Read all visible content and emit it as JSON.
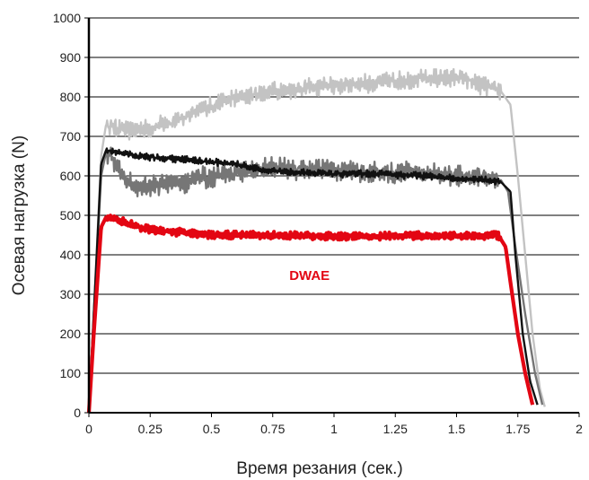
{
  "chart_data": {
    "type": "line",
    "xlabel": "Время резания (сек.)",
    "ylabel": "Осевая нагрузка (N)",
    "xlim": [
      0,
      2
    ],
    "ylim": [
      0,
      1000
    ],
    "x_ticks": [
      "0",
      "0.25",
      "0.5",
      "0.75",
      "1",
      "1.25",
      "1.5",
      "1.75",
      "2"
    ],
    "y_ticks": [
      "0",
      "100",
      "200",
      "300",
      "400",
      "500",
      "600",
      "700",
      "800",
      "900",
      "1000"
    ],
    "grid": "horizontal",
    "annotations": [
      {
        "text": "DWAE",
        "x": 0.9,
        "y": 350,
        "color": "#e30613"
      }
    ],
    "series": [
      {
        "color": "#c3c3c3",
        "noise": 25,
        "points": [
          [
            0,
            0
          ],
          [
            0.02,
            250
          ],
          [
            0.05,
            650
          ],
          [
            0.07,
            730
          ],
          [
            0.15,
            715
          ],
          [
            0.25,
            720
          ],
          [
            0.35,
            740
          ],
          [
            0.45,
            765
          ],
          [
            0.55,
            790
          ],
          [
            0.65,
            805
          ],
          [
            0.75,
            815
          ],
          [
            0.85,
            820
          ],
          [
            1.0,
            830
          ],
          [
            1.15,
            835
          ],
          [
            1.25,
            840
          ],
          [
            1.35,
            845
          ],
          [
            1.5,
            850
          ],
          [
            1.6,
            830
          ],
          [
            1.68,
            815
          ],
          [
            1.72,
            780
          ],
          [
            1.75,
            600
          ],
          [
            1.78,
            400
          ],
          [
            1.81,
            200
          ],
          [
            1.84,
            60
          ],
          [
            1.86,
            15
          ]
        ]
      },
      {
        "color": "#767676",
        "noise": 30,
        "points": [
          [
            0,
            0
          ],
          [
            0.02,
            250
          ],
          [
            0.05,
            600
          ],
          [
            0.07,
            660
          ],
          [
            0.1,
            640
          ],
          [
            0.15,
            590
          ],
          [
            0.2,
            575
          ],
          [
            0.3,
            575
          ],
          [
            0.4,
            585
          ],
          [
            0.5,
            600
          ],
          [
            0.6,
            610
          ],
          [
            0.7,
            620
          ],
          [
            0.8,
            620
          ],
          [
            1.0,
            615
          ],
          [
            1.15,
            610
          ],
          [
            1.3,
            610
          ],
          [
            1.4,
            605
          ],
          [
            1.5,
            600
          ],
          [
            1.6,
            600
          ],
          [
            1.68,
            590
          ],
          [
            1.71,
            560
          ],
          [
            1.74,
            420
          ],
          [
            1.78,
            250
          ],
          [
            1.82,
            100
          ],
          [
            1.85,
            20
          ]
        ]
      },
      {
        "color": "#111111",
        "noise": 10,
        "points": [
          [
            0,
            0
          ],
          [
            0.02,
            250
          ],
          [
            0.05,
            630
          ],
          [
            0.07,
            665
          ],
          [
            0.12,
            660
          ],
          [
            0.2,
            650
          ],
          [
            0.3,
            645
          ],
          [
            0.4,
            640
          ],
          [
            0.5,
            635
          ],
          [
            0.6,
            630
          ],
          [
            0.7,
            615
          ],
          [
            0.8,
            610
          ],
          [
            1.0,
            605
          ],
          [
            1.2,
            605
          ],
          [
            1.35,
            600
          ],
          [
            1.5,
            595
          ],
          [
            1.6,
            590
          ],
          [
            1.68,
            585
          ],
          [
            1.72,
            560
          ],
          [
            1.74,
            400
          ],
          [
            1.77,
            200
          ],
          [
            1.8,
            80
          ],
          [
            1.83,
            20
          ]
        ]
      },
      {
        "color": "#e30613",
        "noise": 10,
        "width": 4.2,
        "points": [
          [
            0,
            0
          ],
          [
            0.02,
            200
          ],
          [
            0.05,
            470
          ],
          [
            0.07,
            495
          ],
          [
            0.12,
            490
          ],
          [
            0.2,
            470
          ],
          [
            0.3,
            460
          ],
          [
            0.4,
            455
          ],
          [
            0.5,
            450
          ],
          [
            0.7,
            450
          ],
          [
            0.9,
            448
          ],
          [
            1.1,
            447
          ],
          [
            1.3,
            448
          ],
          [
            1.5,
            448
          ],
          [
            1.6,
            447
          ],
          [
            1.67,
            450
          ],
          [
            1.7,
            420
          ],
          [
            1.72,
            330
          ],
          [
            1.75,
            200
          ],
          [
            1.78,
            100
          ],
          [
            1.81,
            20
          ]
        ]
      }
    ]
  }
}
